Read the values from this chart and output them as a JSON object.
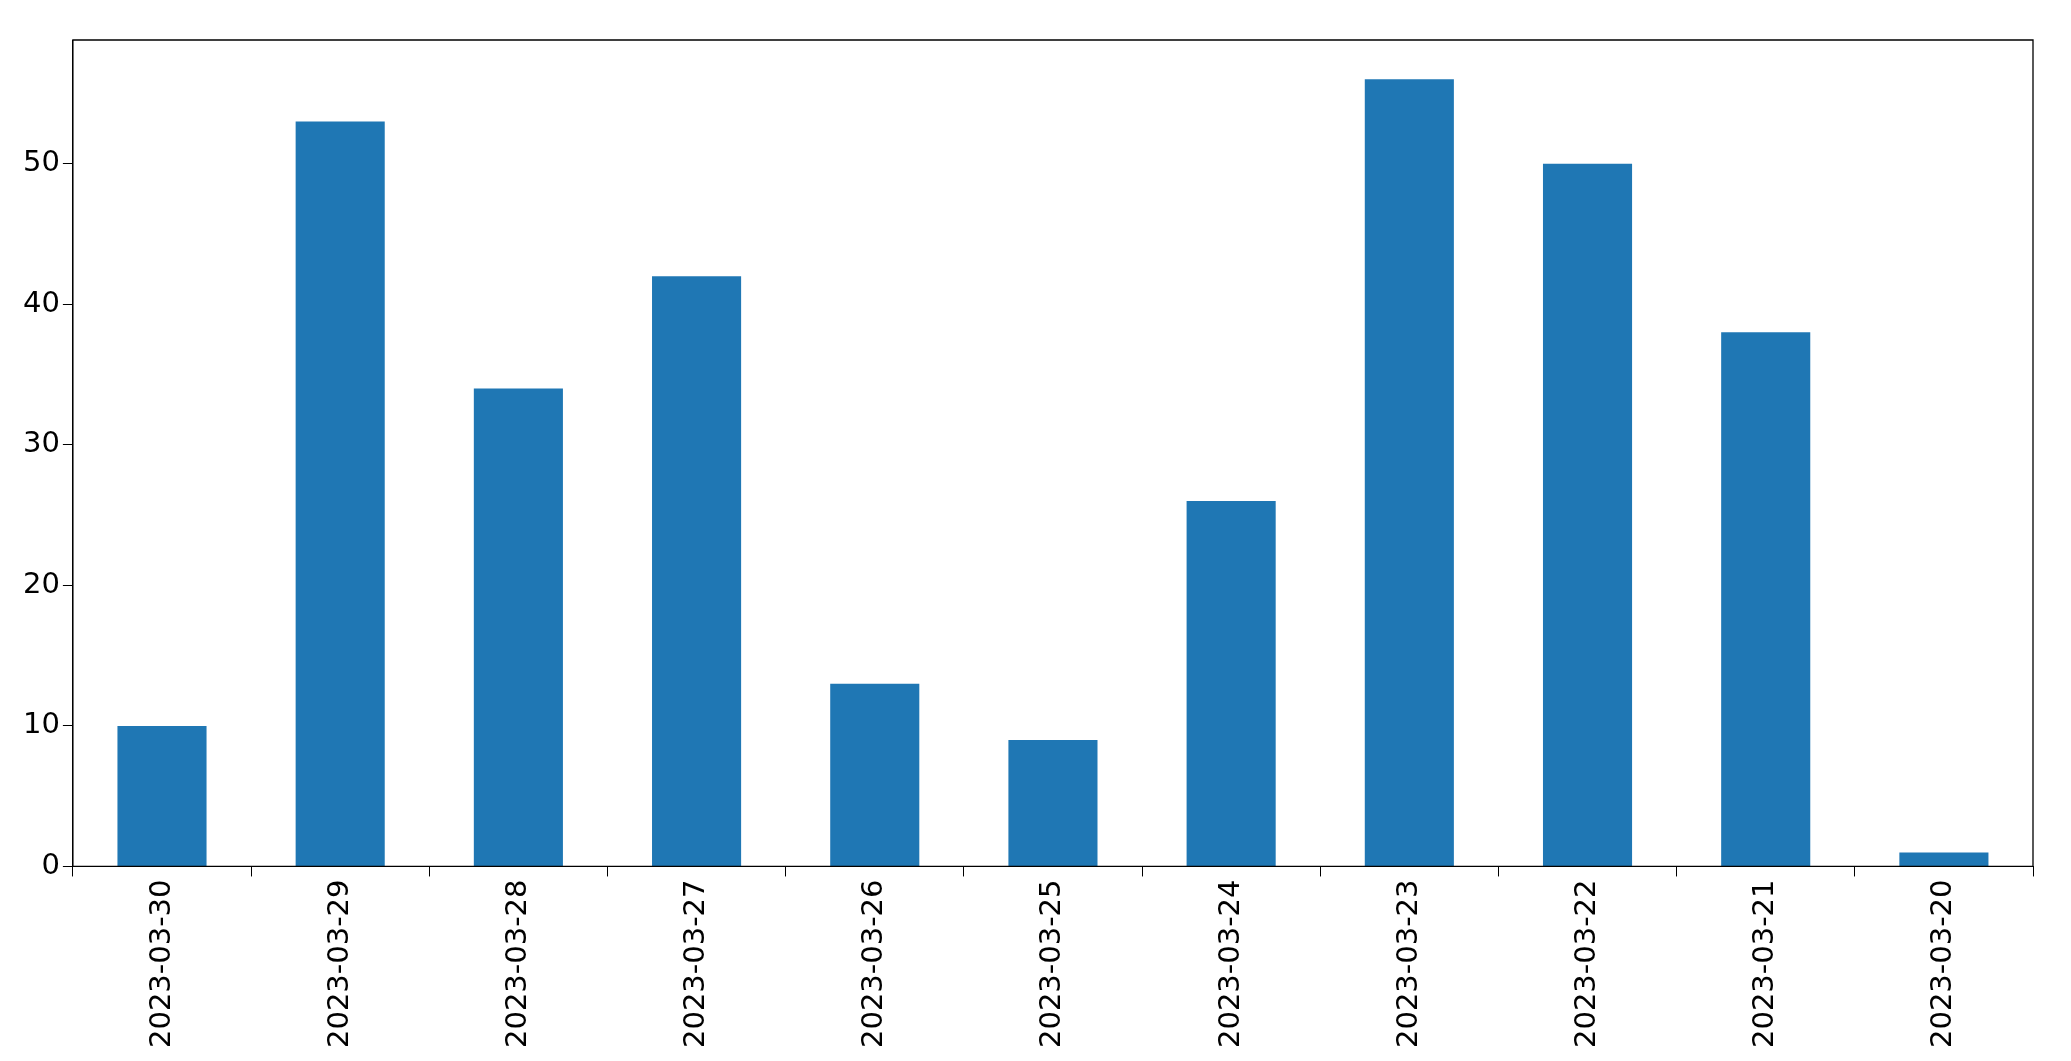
{
  "chart_data": {
    "type": "bar",
    "categories": [
      "2023-03-30",
      "2023-03-29",
      "2023-03-28",
      "2023-03-27",
      "2023-03-26",
      "2023-03-25",
      "2023-03-24",
      "2023-03-23",
      "2023-03-22",
      "2023-03-21",
      "2023-03-20"
    ],
    "values": [
      10,
      53,
      34,
      42,
      13,
      9,
      26,
      56,
      50,
      38,
      1
    ],
    "color": "#1f77b4",
    "ylim": [
      0,
      58.8
    ],
    "yticks": [
      0,
      10,
      20,
      30,
      40,
      50
    ],
    "grid": false,
    "legend": false
  }
}
